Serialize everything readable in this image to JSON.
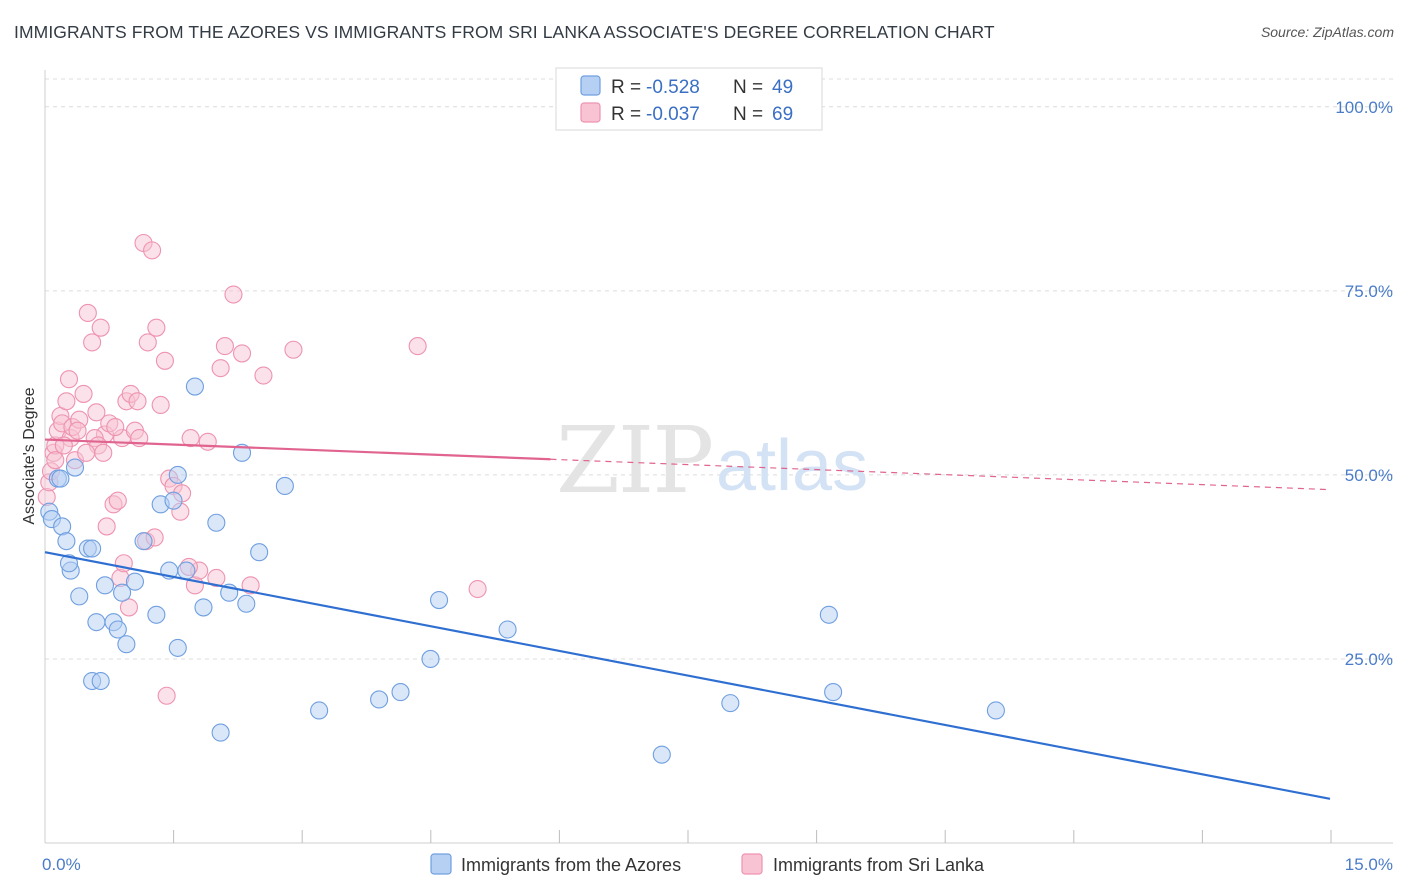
{
  "header": {
    "title": "IMMIGRANTS FROM THE AZORES VS IMMIGRANTS FROM SRI LANKA ASSOCIATE'S DEGREE CORRELATION CHART",
    "source": "Source: ZipAtlas.com"
  },
  "watermark": {
    "zip": "ZIP",
    "atlas": "atlas"
  },
  "legend": {
    "r_label": "R =",
    "n_label": "N =",
    "series": [
      {
        "r": "-0.528",
        "n": "49"
      },
      {
        "r": "-0.037",
        "n": "69"
      }
    ]
  },
  "colors": {
    "azores_fill": "#b6d0f3",
    "azores_stroke": "#6f9fe0",
    "azores_line": "#2f6fd1",
    "srilanka_fill": "#f8c3d3",
    "srilanka_stroke": "#ee93b0",
    "srilanka_line": "#e0648f",
    "grid": "#dcdcdc",
    "tick_text": "#4a7cc8"
  },
  "chart_data": {
    "type": "scatter",
    "title": "IMMIGRANTS FROM THE AZORES VS IMMIGRANTS FROM SRI LANKA ASSOCIATE'S DEGREE CORRELATION CHART",
    "xlabel": "",
    "ylabel": "Associate's Degree",
    "xlim": [
      0,
      15
    ],
    "ylim": [
      0,
      105
    ],
    "x_tick_labels": [
      "0.0%",
      "15.0%"
    ],
    "y_ticks": [
      25,
      50,
      75,
      100
    ],
    "y_tick_labels": [
      "25.0%",
      "50.0%",
      "75.0%",
      "100.0%"
    ],
    "series": [
      {
        "name": "Immigrants from the Azores",
        "r": -0.528,
        "n": 49,
        "trend": {
          "x0": 0,
          "y0": 39.5,
          "x1": 15,
          "y1": 6.0
        },
        "points": [
          [
            0.05,
            45
          ],
          [
            0.08,
            44
          ],
          [
            0.15,
            49.5
          ],
          [
            0.2,
            43
          ],
          [
            0.25,
            41
          ],
          [
            0.3,
            37
          ],
          [
            0.35,
            51
          ],
          [
            0.4,
            33.5
          ],
          [
            0.5,
            40
          ],
          [
            0.55,
            22
          ],
          [
            0.6,
            30
          ],
          [
            0.65,
            22
          ],
          [
            0.7,
            35
          ],
          [
            0.8,
            30
          ],
          [
            0.85,
            29
          ],
          [
            0.9,
            34
          ],
          [
            0.95,
            27
          ],
          [
            1.05,
            35.5
          ],
          [
            1.15,
            41
          ],
          [
            1.3,
            31
          ],
          [
            1.35,
            46
          ],
          [
            1.45,
            37
          ],
          [
            1.55,
            26.5
          ],
          [
            1.65,
            37
          ],
          [
            1.75,
            62
          ],
          [
            1.85,
            32
          ],
          [
            2.0,
            43.5
          ],
          [
            2.05,
            15
          ],
          [
            2.15,
            34
          ],
          [
            2.35,
            32.5
          ],
          [
            2.3,
            53
          ],
          [
            2.5,
            39.5
          ],
          [
            2.8,
            48.5
          ],
          [
            3.2,
            18
          ],
          [
            3.9,
            19.5
          ],
          [
            4.15,
            20.5
          ],
          [
            4.5,
            25
          ],
          [
            4.6,
            33
          ],
          [
            5.4,
            29
          ],
          [
            7.2,
            12
          ],
          [
            8.0,
            19
          ],
          [
            9.15,
            31
          ],
          [
            9.2,
            20.5
          ],
          [
            11.1,
            18
          ],
          [
            0.18,
            49.5
          ],
          [
            0.55,
            40
          ],
          [
            1.5,
            46.5
          ],
          [
            1.55,
            50
          ],
          [
            0.28,
            38
          ]
        ]
      },
      {
        "name": "Immigrants from Sri Lanka",
        "r": -0.037,
        "n": 69,
        "trend": {
          "x0": 0,
          "y0": 54.8,
          "x1": 15,
          "y1": 48.0,
          "solid_until_x": 5.9
        },
        "points": [
          [
            0.02,
            47
          ],
          [
            0.05,
            49
          ],
          [
            0.07,
            50.5
          ],
          [
            0.1,
            53
          ],
          [
            0.12,
            54
          ],
          [
            0.15,
            56
          ],
          [
            0.18,
            58
          ],
          [
            0.2,
            57
          ],
          [
            0.25,
            60
          ],
          [
            0.28,
            63
          ],
          [
            0.3,
            55
          ],
          [
            0.32,
            56.5
          ],
          [
            0.35,
            52
          ],
          [
            0.4,
            57.5
          ],
          [
            0.45,
            61
          ],
          [
            0.5,
            72
          ],
          [
            0.55,
            68
          ],
          [
            0.6,
            58.5
          ],
          [
            0.65,
            70
          ],
          [
            0.7,
            55.5
          ],
          [
            0.75,
            57
          ],
          [
            0.8,
            46
          ],
          [
            0.85,
            46.5
          ],
          [
            0.9,
            55
          ],
          [
            0.95,
            60
          ],
          [
            1.0,
            61
          ],
          [
            1.05,
            56
          ],
          [
            1.1,
            55
          ],
          [
            1.15,
            81.5
          ],
          [
            1.2,
            68
          ],
          [
            1.25,
            80.5
          ],
          [
            1.3,
            70
          ],
          [
            1.35,
            59.5
          ],
          [
            1.4,
            65.5
          ],
          [
            1.45,
            49.5
          ],
          [
            1.5,
            48.5
          ],
          [
            1.6,
            47.5
          ],
          [
            1.7,
            55
          ],
          [
            1.75,
            35
          ],
          [
            1.8,
            37
          ],
          [
            1.9,
            54.5
          ],
          [
            2.0,
            36
          ],
          [
            2.05,
            64.5
          ],
          [
            2.1,
            67.5
          ],
          [
            2.2,
            74.5
          ],
          [
            2.3,
            66.5
          ],
          [
            2.4,
            35
          ],
          [
            2.55,
            63.5
          ],
          [
            2.9,
            67
          ],
          [
            4.35,
            67.5
          ],
          [
            5.05,
            34.5
          ],
          [
            0.12,
            52
          ],
          [
            0.22,
            54
          ],
          [
            0.38,
            56
          ],
          [
            0.58,
            55
          ],
          [
            0.62,
            54
          ],
          [
            0.72,
            43
          ],
          [
            0.88,
            36
          ],
          [
            0.92,
            38
          ],
          [
            0.98,
            32
          ],
          [
            1.08,
            60
          ],
          [
            1.18,
            41
          ],
          [
            1.28,
            41.5
          ],
          [
            1.42,
            20
          ],
          [
            1.58,
            45
          ],
          [
            1.68,
            37.5
          ],
          [
            0.48,
            53
          ],
          [
            0.68,
            53
          ],
          [
            0.82,
            56.5
          ]
        ]
      }
    ]
  },
  "bottom_legend": [
    {
      "label": "Immigrants from the Azores"
    },
    {
      "label": "Immigrants from Sri Lanka"
    }
  ]
}
